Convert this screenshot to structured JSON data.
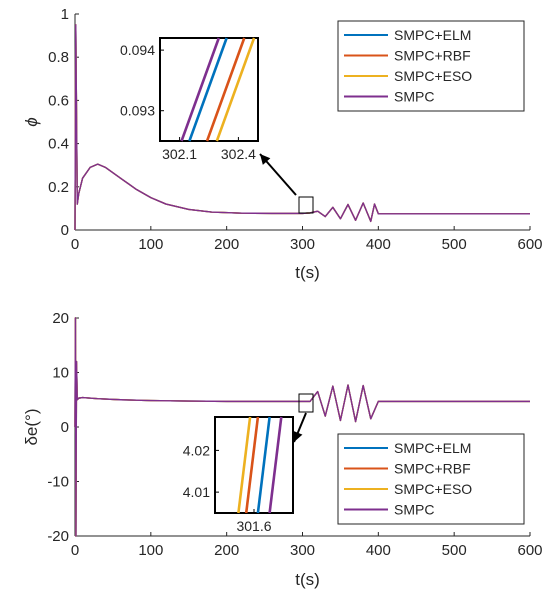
{
  "chart_data": [
    {
      "type": "line",
      "xlabel": "t(s)",
      "ylabel": "ϕ",
      "xlim": [
        0,
        600
      ],
      "ylim": [
        0,
        1
      ],
      "xticks": [
        0,
        100,
        200,
        300,
        400,
        500,
        600
      ],
      "yticks": [
        0,
        0.2,
        0.4,
        0.6,
        0.8,
        1
      ],
      "ytick_labels": [
        "0",
        "0.2",
        "0.4",
        "0.6",
        "0.8",
        "1"
      ],
      "grid": false,
      "legend_position": "top-right",
      "series": [
        {
          "name": "SMPC+ELM",
          "color": "#0072BD"
        },
        {
          "name": "SMPC+RBF",
          "color": "#D95319"
        },
        {
          "name": "SMPC+ESO",
          "color": "#EDB120"
        },
        {
          "name": "SMPC",
          "color": "#7E2F8E"
        }
      ],
      "curve": {
        "x": [
          0,
          1,
          3,
          5,
          10,
          20,
          30,
          40,
          60,
          80,
          100,
          120,
          150,
          180,
          220,
          260,
          300,
          310,
          320,
          330,
          340,
          350,
          360,
          370,
          380,
          390,
          395,
          400,
          450,
          500,
          550,
          600
        ],
        "y": [
          0,
          0.95,
          0.12,
          0.17,
          0.24,
          0.29,
          0.305,
          0.29,
          0.24,
          0.19,
          0.15,
          0.12,
          0.095,
          0.083,
          0.078,
          0.077,
          0.077,
          0.079,
          0.087,
          0.062,
          0.105,
          0.052,
          0.118,
          0.045,
          0.125,
          0.04,
          0.12,
          0.075,
          0.075,
          0.075,
          0.075,
          0.075
        ]
      },
      "inset": {
        "xlim": [
          302.0,
          302.5
        ],
        "ylim": [
          0.0925,
          0.0942
        ],
        "xticks": [
          302.1,
          302.4
        ],
        "xtick_labels": [
          "302.1",
          "302.4"
        ],
        "yticks": [
          0.093,
          0.094
        ],
        "ytick_labels": [
          "0.093",
          "0.094"
        ],
        "lines": [
          {
            "series": "SMPC+ELM",
            "x": [
              302.15,
              302.34
            ]
          },
          {
            "series": "SMPC+RBF",
            "x": [
              302.24,
              302.43
            ]
          },
          {
            "series": "SMPC+ESO",
            "x": [
              302.29,
              302.48
            ]
          },
          {
            "series": "SMPC",
            "x": [
              302.11,
              302.3
            ]
          }
        ]
      }
    },
    {
      "type": "line",
      "xlabel": "t(s)",
      "ylabel": "δe(°)",
      "xlim": [
        0,
        600
      ],
      "ylim": [
        -20,
        20
      ],
      "xticks": [
        0,
        100,
        200,
        300,
        400,
        500,
        600
      ],
      "yticks": [
        -20,
        -10,
        0,
        10,
        20
      ],
      "ytick_labels": [
        "-20",
        "-10",
        "0",
        "10",
        "20"
      ],
      "grid": false,
      "legend_position": "bottom-right",
      "series": [
        {
          "name": "SMPC+ELM",
          "color": "#0072BD"
        },
        {
          "name": "SMPC+RBF",
          "color": "#D95319"
        },
        {
          "name": "SMPC+ESO",
          "color": "#EDB120"
        },
        {
          "name": "SMPC",
          "color": "#7E2F8E"
        }
      ],
      "curve": {
        "x": [
          0,
          0.6,
          1.2,
          2,
          3,
          5,
          10,
          30,
          60,
          100,
          150,
          200,
          250,
          300,
          305,
          310,
          320,
          330,
          340,
          350,
          360,
          370,
          380,
          390,
          400,
          450,
          500,
          550,
          600
        ],
        "y": [
          0,
          20,
          -20,
          12,
          5,
          5.3,
          5.4,
          5.2,
          5.0,
          4.85,
          4.75,
          4.7,
          4.7,
          4.7,
          4.7,
          4.7,
          6.5,
          2.0,
          7.5,
          1.2,
          7.7,
          1.0,
          7.6,
          1.5,
          4.7,
          4.7,
          4.7,
          4.7,
          4.7
        ]
      },
      "inset": {
        "xlim": [
          301.5,
          301.7
        ],
        "ylim": [
          4.005,
          4.028
        ],
        "xticks": [
          301.6
        ],
        "xtick_labels": [
          "301.6"
        ],
        "yticks": [
          4.01,
          4.02
        ],
        "ytick_labels": [
          "4.01",
          "4.02"
        ],
        "lines": [
          {
            "series": "SMPC+ESO",
            "x": [
              301.56,
              301.59
            ]
          },
          {
            "series": "SMPC+RBF",
            "x": [
              301.58,
              301.61
            ]
          },
          {
            "series": "SMPC+ELM",
            "x": [
              301.61,
              301.64
            ]
          },
          {
            "series": "SMPC",
            "x": [
              301.64,
              301.67
            ]
          }
        ]
      }
    }
  ]
}
